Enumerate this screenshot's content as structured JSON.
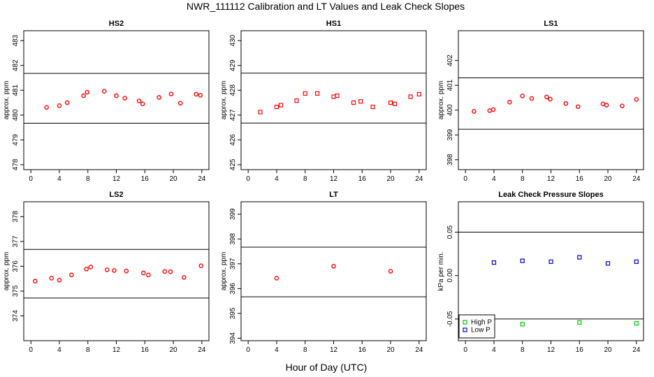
{
  "figure": {
    "title": "NWR_111112  Calibration and LT Values and Leak Check Slopes",
    "xlabel": "Hour of Day (UTC)"
  },
  "chart_data": [
    {
      "type": "scatter",
      "title": "HS2",
      "ylabel": "approx. ppm",
      "xlim": [
        -1,
        25
      ],
      "ylim": [
        477.8,
        483.4
      ],
      "xticks": [
        0,
        4,
        8,
        12,
        16,
        20,
        24
      ],
      "yticks": [
        478,
        479,
        480,
        481,
        482,
        483
      ],
      "hlines": [
        479.67,
        481.68
      ],
      "series": [
        {
          "marker": "circle",
          "color": "#ff0000",
          "points": [
            [
              2.2,
              480.31
            ],
            [
              4,
              480.38
            ],
            [
              5.1,
              480.5
            ],
            [
              7.4,
              480.78
            ],
            [
              7.9,
              480.92
            ],
            [
              10.3,
              480.96
            ],
            [
              12,
              480.78
            ],
            [
              13.2,
              480.68
            ],
            [
              15.2,
              480.57
            ],
            [
              15.7,
              480.45
            ],
            [
              18,
              480.71
            ],
            [
              19.7,
              480.85
            ],
            [
              21,
              480.48
            ],
            [
              23.2,
              480.84
            ],
            [
              23.8,
              480.8
            ]
          ]
        }
      ]
    },
    {
      "type": "scatter",
      "title": "HS1",
      "ylabel": "approx. ppm",
      "xlim": [
        -1,
        25
      ],
      "ylim": [
        424.8,
        430.4
      ],
      "xticks": [
        0,
        4,
        8,
        12,
        16,
        20,
        24
      ],
      "yticks": [
        425,
        426,
        427,
        428,
        429,
        430
      ],
      "hlines": [
        426.68,
        428.69
      ],
      "series": [
        {
          "marker": "square",
          "color": "#ff0000",
          "points": [
            [
              1.7,
              427.12
            ],
            [
              4,
              427.33
            ],
            [
              4.6,
              427.4
            ],
            [
              6.8,
              427.58
            ],
            [
              8,
              427.87
            ],
            [
              9.7,
              427.87
            ],
            [
              12,
              427.74
            ],
            [
              12.5,
              427.78
            ],
            [
              14.8,
              427.5
            ],
            [
              15.8,
              427.55
            ],
            [
              17.5,
              427.33
            ],
            [
              20,
              427.5
            ],
            [
              20.6,
              427.45
            ],
            [
              22.8,
              427.74
            ],
            [
              24,
              427.84
            ]
          ]
        }
      ]
    },
    {
      "type": "scatter",
      "title": "LS1",
      "ylabel": "approx. ppm",
      "xlim": [
        -1,
        25
      ],
      "ylim": [
        397.6,
        403.2
      ],
      "xticks": [
        0,
        4,
        8,
        12,
        16,
        20,
        24
      ],
      "yticks": [
        398,
        399,
        400,
        401,
        402
      ],
      "hlines": [
        399.23,
        401.3
      ],
      "series": [
        {
          "marker": "circle",
          "color": "#ff0000",
          "points": [
            [
              1.2,
              399.95
            ],
            [
              3.4,
              399.98
            ],
            [
              3.9,
              400.02
            ],
            [
              6.2,
              400.32
            ],
            [
              8,
              400.57
            ],
            [
              9.3,
              400.47
            ],
            [
              11.4,
              400.53
            ],
            [
              11.9,
              400.44
            ],
            [
              14.1,
              400.27
            ],
            [
              15.8,
              400.14
            ],
            [
              19.3,
              400.25
            ],
            [
              19.8,
              400.2
            ],
            [
              22,
              400.17
            ],
            [
              24,
              400.43
            ]
          ]
        }
      ]
    },
    {
      "type": "scatter",
      "title": "LS2",
      "ylabel": "approx. ppm",
      "xlim": [
        -1,
        25
      ],
      "ylim": [
        373.0,
        378.6
      ],
      "xticks": [
        0,
        4,
        8,
        12,
        16,
        20,
        24
      ],
      "yticks": [
        374,
        375,
        376,
        377,
        378
      ],
      "hlines": [
        374.72,
        376.68
      ],
      "series": [
        {
          "marker": "circle",
          "color": "#ff0000",
          "points": [
            [
              0.6,
              375.4
            ],
            [
              2.9,
              375.52
            ],
            [
              4,
              375.44
            ],
            [
              5.7,
              375.65
            ],
            [
              7.8,
              375.89
            ],
            [
              8.4,
              375.97
            ],
            [
              10.7,
              375.86
            ],
            [
              11.7,
              375.83
            ],
            [
              13.4,
              375.81
            ],
            [
              15.8,
              375.73
            ],
            [
              16.5,
              375.65
            ],
            [
              18.8,
              375.79
            ],
            [
              19.6,
              375.78
            ],
            [
              21.5,
              375.55
            ],
            [
              23.9,
              376.02
            ]
          ]
        }
      ]
    },
    {
      "type": "scatter",
      "title": "LT",
      "ylabel": "approx. ppm",
      "xlim": [
        -1,
        25
      ],
      "ylim": [
        393.9,
        399.5
      ],
      "xticks": [
        0,
        4,
        8,
        12,
        16,
        20,
        24
      ],
      "yticks": [
        394,
        395,
        396,
        397,
        398,
        399
      ],
      "hlines": [
        395.67,
        397.67
      ],
      "series": [
        {
          "marker": "circle",
          "color": "#ff0000",
          "points": [
            [
              4,
              396.42
            ],
            [
              12,
              396.9
            ],
            [
              20,
              396.7
            ]
          ]
        }
      ]
    },
    {
      "type": "scatter",
      "title": "Leak Check Pressure Slopes",
      "ylabel": "kPa per min.",
      "xlim": [
        -1,
        25
      ],
      "ylim": [
        -0.075,
        0.085
      ],
      "xticks": [
        0,
        4,
        8,
        12,
        16,
        20,
        24
      ],
      "yticks": [
        -0.05,
        0.0,
        0.05
      ],
      "ytick_labels": [
        "-0.05",
        "0.00",
        "0.05"
      ],
      "hlines": [
        -0.05,
        0.05
      ],
      "legend": {
        "position": "bottom-left",
        "entries": [
          {
            "name": "High P",
            "color": "#00cc00"
          },
          {
            "name": "Low P",
            "color": "#0000cc"
          }
        ]
      },
      "series": [
        {
          "name": "High P",
          "marker": "square",
          "color": "#00cc00",
          "points": [
            [
              8,
              -0.056
            ],
            [
              16,
              -0.054
            ],
            [
              24,
              -0.055
            ]
          ]
        },
        {
          "name": "Low P",
          "marker": "square",
          "color": "#0000cc",
          "points": [
            [
              4,
              0.015
            ],
            [
              8,
              0.017
            ],
            [
              12,
              0.016
            ],
            [
              16,
              0.021
            ],
            [
              20,
              0.014
            ],
            [
              24,
              0.016
            ]
          ]
        }
      ]
    }
  ]
}
